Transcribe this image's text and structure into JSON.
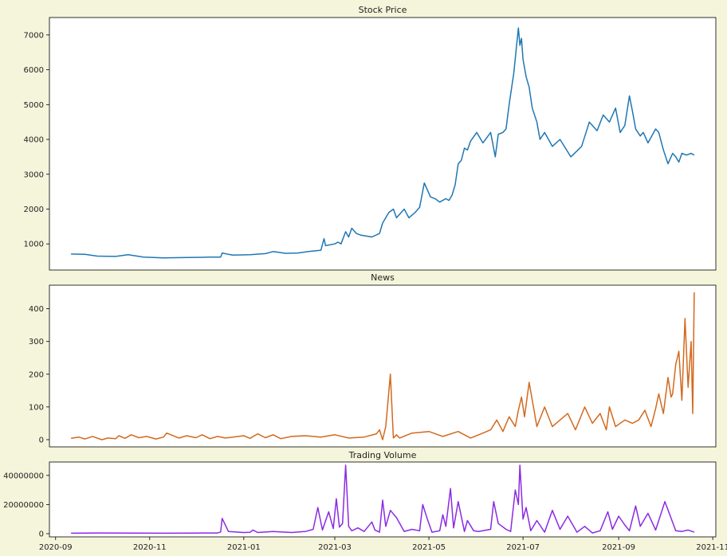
{
  "chart_data": [
    {
      "type": "line",
      "title": "Stock Price",
      "xlabel": "",
      "ylabel": "",
      "ylim": [
        250,
        7500
      ],
      "yticks": [
        1000,
        2000,
        3000,
        4000,
        5000,
        6000,
        7000
      ],
      "ytick_labels": [
        "1000",
        "2000",
        "3000",
        "4000",
        "5000",
        "6000",
        "7000"
      ],
      "x_is_shared": true,
      "color": "#1f77b4",
      "series": [
        {
          "x": [
            "2020-09-11",
            "2020-09-20",
            "2020-09-28",
            "2020-10-10",
            "2020-10-18",
            "2020-10-28",
            "2020-11-10",
            "2020-11-25",
            "2020-12-10",
            "2020-12-17",
            "2020-12-18",
            "2020-12-22",
            "2020-12-25",
            "2021-01-05",
            "2021-01-15",
            "2021-01-20",
            "2021-01-28",
            "2021-02-05",
            "2021-02-12",
            "2021-02-20",
            "2021-02-22",
            "2021-02-23",
            "2021-03-01",
            "2021-03-03",
            "2021-03-05",
            "2021-03-08",
            "2021-03-10",
            "2021-03-12",
            "2021-03-15",
            "2021-03-18",
            "2021-03-25",
            "2021-03-30",
            "2021-04-01",
            "2021-04-05",
            "2021-04-08",
            "2021-04-10",
            "2021-04-15",
            "2021-04-18",
            "2021-04-22",
            "2021-04-25",
            "2021-04-28",
            "2021-05-02",
            "2021-05-05",
            "2021-05-08",
            "2021-05-12",
            "2021-05-14",
            "2021-05-16",
            "2021-05-18",
            "2021-05-20",
            "2021-05-22",
            "2021-05-24",
            "2021-05-26",
            "2021-05-28",
            "2021-06-01",
            "2021-06-05",
            "2021-06-10",
            "2021-06-13",
            "2021-06-15",
            "2021-06-18",
            "2021-06-20",
            "2021-06-22",
            "2021-06-25",
            "2021-06-28",
            "2021-06-29",
            "2021-06-30",
            "2021-07-01",
            "2021-07-03",
            "2021-07-05",
            "2021-07-07",
            "2021-07-10",
            "2021-07-12",
            "2021-07-15",
            "2021-07-20",
            "2021-07-25",
            "2021-08-01",
            "2021-08-08",
            "2021-08-13",
            "2021-08-18",
            "2021-08-22",
            "2021-08-26",
            "2021-08-30",
            "2021-09-02",
            "2021-09-05",
            "2021-09-08",
            "2021-09-10",
            "2021-09-12",
            "2021-09-15",
            "2021-09-17",
            "2021-09-20",
            "2021-09-25",
            "2021-09-27",
            "2021-09-30",
            "2021-10-03",
            "2021-10-06",
            "2021-10-08",
            "2021-10-10",
            "2021-10-12",
            "2021-10-15",
            "2021-10-18",
            "2021-10-20"
          ],
          "y": [
            710,
            700,
            650,
            640,
            690,
            620,
            600,
            610,
            620,
            620,
            740,
            700,
            680,
            690,
            720,
            780,
            730,
            740,
            780,
            820,
            1150,
            950,
            1000,
            1050,
            1000,
            1350,
            1200,
            1450,
            1300,
            1250,
            1200,
            1300,
            1600,
            1900,
            2000,
            1750,
            2000,
            1750,
            1900,
            2050,
            2750,
            2350,
            2300,
            2200,
            2300,
            2250,
            2400,
            2700,
            3300,
            3400,
            3750,
            3700,
            3950,
            4200,
            3900,
            4200,
            3500,
            4150,
            4200,
            4300,
            5000,
            5900,
            7200,
            6700,
            6900,
            6300,
            5800,
            5500,
            4900,
            4500,
            4000,
            4200,
            3800,
            4000,
            3500,
            3800,
            4500,
            4250,
            4700,
            4500,
            4900,
            4200,
            4400,
            5250,
            4800,
            4300,
            4100,
            4200,
            3900,
            4300,
            4200,
            3700,
            3300,
            3600,
            3500,
            3350,
            3600,
            3550,
            3600,
            3550
          ]
        }
      ]
    },
    {
      "type": "line",
      "title": "News",
      "xlabel": "",
      "ylabel": "",
      "ylim": [
        -22,
        472
      ],
      "yticks": [
        0,
        100,
        200,
        300,
        400
      ],
      "ytick_labels": [
        "0",
        "100",
        "200",
        "300",
        "400"
      ],
      "x_is_shared": true,
      "color": "#d2691e",
      "series": [
        {
          "x": [
            "2020-09-11",
            "2020-09-16",
            "2020-09-20",
            "2020-09-25",
            "2020-10-01",
            "2020-10-05",
            "2020-10-10",
            "2020-10-12",
            "2020-10-16",
            "2020-10-20",
            "2020-10-25",
            "2020-10-30",
            "2020-11-05",
            "2020-11-10",
            "2020-11-12",
            "2020-11-20",
            "2020-11-25",
            "2020-12-01",
            "2020-12-05",
            "2020-12-10",
            "2020-12-15",
            "2020-12-20",
            "2020-12-25",
            "2021-01-01",
            "2021-01-05",
            "2021-01-10",
            "2021-01-15",
            "2021-01-20",
            "2021-01-25",
            "2021-02-01",
            "2021-02-10",
            "2021-02-20",
            "2021-03-01",
            "2021-03-10",
            "2021-03-20",
            "2021-03-28",
            "2021-03-30",
            "2021-04-01",
            "2021-04-03",
            "2021-04-06",
            "2021-04-08",
            "2021-04-10",
            "2021-04-12",
            "2021-04-20",
            "2021-05-01",
            "2021-05-10",
            "2021-05-20",
            "2021-05-28",
            "2021-06-05",
            "2021-06-10",
            "2021-06-14",
            "2021-06-18",
            "2021-06-22",
            "2021-06-26",
            "2021-06-28",
            "2021-06-30",
            "2021-07-02",
            "2021-07-05",
            "2021-07-10",
            "2021-07-15",
            "2021-07-20",
            "2021-07-25",
            "2021-07-30",
            "2021-08-04",
            "2021-08-10",
            "2021-08-15",
            "2021-08-20",
            "2021-08-24",
            "2021-08-26",
            "2021-08-30",
            "2021-09-05",
            "2021-09-10",
            "2021-09-14",
            "2021-09-18",
            "2021-09-22",
            "2021-09-25",
            "2021-09-27",
            "2021-09-30",
            "2021-10-03",
            "2021-10-05",
            "2021-10-06",
            "2021-10-08",
            "2021-10-10",
            "2021-10-12",
            "2021-10-14",
            "2021-10-16",
            "2021-10-18",
            "2021-10-19",
            "2021-10-20"
          ],
          "y": [
            4,
            8,
            2,
            10,
            0,
            5,
            3,
            12,
            4,
            15,
            6,
            10,
            2,
            8,
            20,
            5,
            12,
            6,
            15,
            3,
            10,
            5,
            8,
            12,
            4,
            18,
            6,
            15,
            3,
            10,
            12,
            8,
            15,
            5,
            8,
            18,
            30,
            0,
            40,
            200,
            5,
            15,
            5,
            20,
            25,
            10,
            25,
            5,
            20,
            30,
            60,
            25,
            70,
            40,
            90,
            130,
            70,
            175,
            40,
            100,
            40,
            60,
            80,
            30,
            100,
            50,
            80,
            30,
            100,
            40,
            60,
            50,
            60,
            90,
            40,
            95,
            140,
            80,
            190,
            130,
            140,
            230,
            270,
            120,
            370,
            160,
            300,
            80,
            450
          ]
        }
      ]
    },
    {
      "type": "line",
      "title": "Trading Volume",
      "xlabel": "",
      "ylabel": "",
      "ylim": [
        -2200000,
        49200000
      ],
      "yticks": [
        0,
        20000000,
        40000000
      ],
      "ytick_labels": [
        "0",
        "20000000",
        "40000000"
      ],
      "x_is_shared": true,
      "xlim": [
        "2020-08-28",
        "2021-11-03"
      ],
      "xticks": [
        "2020-09-01",
        "2020-11-01",
        "2021-01-01",
        "2021-03-01",
        "2021-05-01",
        "2021-07-01",
        "2021-09-01",
        "2021-11-01"
      ],
      "xtick_labels": [
        "2020-09",
        "2020-11",
        "2021-01",
        "2021-03",
        "2021-05",
        "2021-07",
        "2021-09",
        "2021-11"
      ],
      "color": "#8a2be2",
      "series": [
        {
          "x": [
            "2020-09-11",
            "2020-10-01",
            "2020-10-20",
            "2020-11-10",
            "2020-12-01",
            "2020-12-15",
            "2020-12-17",
            "2020-12-18",
            "2020-12-22",
            "2021-01-01",
            "2021-01-05",
            "2021-01-07",
            "2021-01-10",
            "2021-01-20",
            "2021-02-01",
            "2021-02-10",
            "2021-02-15",
            "2021-02-18",
            "2021-02-21",
            "2021-02-25",
            "2021-02-28",
            "2021-03-02",
            "2021-03-04",
            "2021-03-06",
            "2021-03-08",
            "2021-03-10",
            "2021-03-12",
            "2021-03-16",
            "2021-03-20",
            "2021-03-25",
            "2021-03-27",
            "2021-03-30",
            "2021-04-01",
            "2021-04-03",
            "2021-04-06",
            "2021-04-10",
            "2021-04-15",
            "2021-04-20",
            "2021-04-25",
            "2021-04-27",
            "2021-04-30",
            "2021-05-03",
            "2021-05-08",
            "2021-05-10",
            "2021-05-12",
            "2021-05-15",
            "2021-05-17",
            "2021-05-20",
            "2021-05-24",
            "2021-05-26",
            "2021-05-30",
            "2021-06-02",
            "2021-06-10",
            "2021-06-12",
            "2021-06-15",
            "2021-06-20",
            "2021-06-23",
            "2021-06-26",
            "2021-06-28",
            "2021-06-29",
            "2021-07-01",
            "2021-07-03",
            "2021-07-06",
            "2021-07-10",
            "2021-07-15",
            "2021-07-20",
            "2021-07-25",
            "2021-07-30",
            "2021-08-05",
            "2021-08-10",
            "2021-08-15",
            "2021-08-20",
            "2021-08-25",
            "2021-08-28",
            "2021-09-01",
            "2021-09-05",
            "2021-09-08",
            "2021-09-12",
            "2021-09-15",
            "2021-09-20",
            "2021-09-25",
            "2021-10-01",
            "2021-10-08",
            "2021-10-12",
            "2021-10-16",
            "2021-10-20"
          ],
          "y": [
            300000,
            500000,
            400000,
            300000,
            400000,
            500000,
            1200000,
            10500000,
            1500000,
            800000,
            900000,
            2500000,
            800000,
            1500000,
            800000,
            1500000,
            3000000,
            18000000,
            2500000,
            15000000,
            3500000,
            24000000,
            4500000,
            7000000,
            47000000,
            5000000,
            2000000,
            4000000,
            1500000,
            8000000,
            2500000,
            1000000,
            23000000,
            5000000,
            16000000,
            11000000,
            1500000,
            3000000,
            2000000,
            20000000,
            10000000,
            1000000,
            2000000,
            13000000,
            5000000,
            31000000,
            4000000,
            22000000,
            1500000,
            9000000,
            2000000,
            1500000,
            3000000,
            22000000,
            7000000,
            3000000,
            1500000,
            30000000,
            20000000,
            47000000,
            10000000,
            18000000,
            2000000,
            9000000,
            1000000,
            16000000,
            3000000,
            12000000,
            1000000,
            5000000,
            500000,
            2000000,
            15000000,
            3000000,
            12000000,
            6000000,
            2000000,
            19000000,
            5000000,
            14000000,
            2500000,
            22000000,
            2000000,
            1500000,
            2500000,
            1000000
          ]
        }
      ]
    }
  ]
}
